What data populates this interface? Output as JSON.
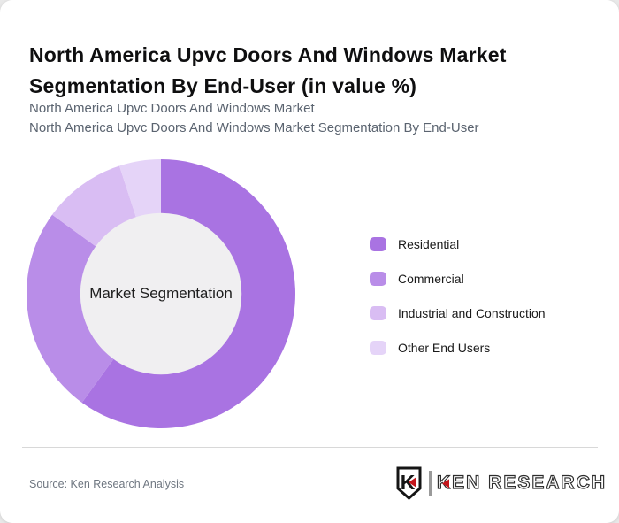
{
  "page": {
    "title": "North America Upvc Doors And Windows Market Segmentation By End-User (in value %)",
    "subtitle_line1": "North America Upvc Doors And Windows Market",
    "subtitle_line2": "North America Upvc Doors And Windows Market Segmentation By End-User"
  },
  "chart_data": {
    "type": "pie",
    "variant": "donut",
    "title": "North America Upvc Doors And Windows Market Segmentation By End-User (in value %)",
    "center_label": "Market Segmentation",
    "categories": [
      "Residential",
      "Commercial",
      "Industrial and Construction",
      "Other End Users"
    ],
    "values": [
      60,
      25,
      10,
      5
    ],
    "values_note": "percent of value share, estimated from arc angles (no numeric labels printed on chart)",
    "colors": [
      "#a973e2",
      "#b98de8",
      "#d9bdf3",
      "#e5d4f8"
    ],
    "start_angle_deg": 0,
    "direction": "clockwise",
    "inner_radius_ratio": 0.6,
    "donut_hole_color": "#f0eff1",
    "legend_position": "right",
    "legend_entries": [
      "Residential",
      "Commercial",
      "Industrial and Construction",
      "Other End Users"
    ]
  },
  "footer": {
    "source": "Source: Ken Research Analysis",
    "logo_monogram": "K",
    "logo_text": "KEN RESEARCH"
  },
  "colors": {
    "accent_red": "#c4161c",
    "card_background": "#ffffff",
    "page_background": "#e9e9e9",
    "title_text": "#0f0f10",
    "subtitle_text": "#5b6470",
    "divider": "#d8d8d8"
  }
}
